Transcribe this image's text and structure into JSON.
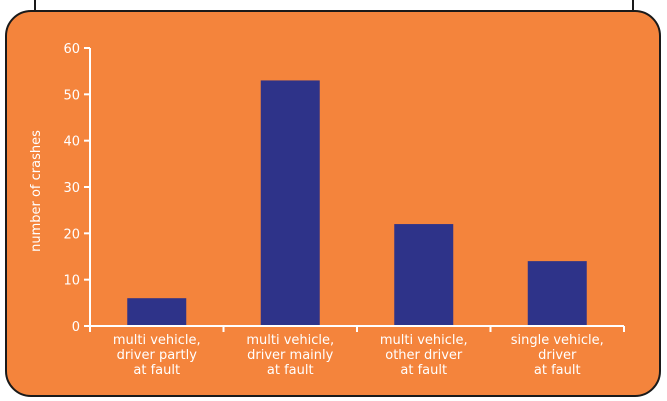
{
  "colors": {
    "panel_background": "#f4843c",
    "bar_fill": "#2e3389",
    "axis_color": "#ffffff",
    "text_color": "#ffffff",
    "border_color": "#1a1a1a"
  },
  "chart_data": {
    "type": "bar",
    "title": "",
    "xlabel": "",
    "ylabel": "number of crashes",
    "ylim": [
      0,
      60
    ],
    "yticks": [
      0,
      10,
      20,
      30,
      40,
      50,
      60
    ],
    "grid": false,
    "categories": [
      [
        "multi vehicle,",
        "driver partly",
        "at fault"
      ],
      [
        "multi vehicle,",
        "driver mainly",
        "at fault"
      ],
      [
        "multi vehicle,",
        "other driver",
        "at fault"
      ],
      [
        "single vehicle,",
        "driver",
        "at fault"
      ]
    ],
    "values": [
      6,
      53,
      22,
      14
    ]
  }
}
